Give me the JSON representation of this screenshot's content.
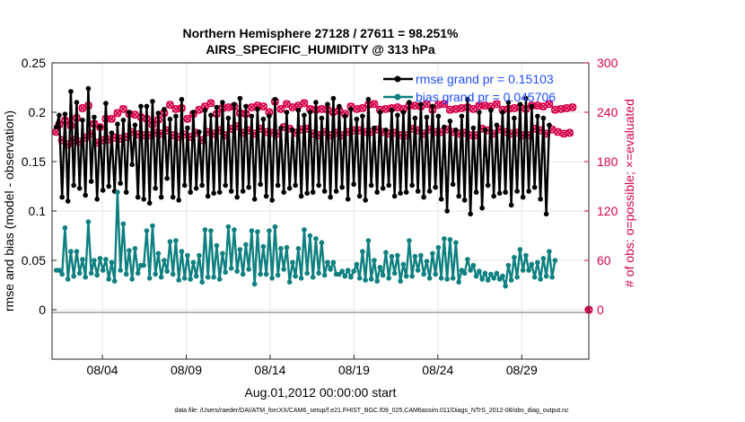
{
  "chart_data": {
    "type": "line",
    "title": "Northern Hemisphere 27128 / 27611 = 98.251%",
    "subtitle": "AIRS_SPECIFIC_HUMIDITY @ 313 hPa",
    "xlabel": "Aug.01,2012 00:00:00 start",
    "ylabel_left": "rmse and bias (model - observation)",
    "ylabel_right": "# of obs: o=possible; ×=evaluated",
    "ylim_left": [
      -0.05,
      0.25
    ],
    "ylim_right": [
      -60,
      300
    ],
    "x_ticks": [
      "08/04",
      "08/09",
      "08/14",
      "08/19",
      "08/24",
      "08/29"
    ],
    "y_ticks_left": [
      "0",
      "0.05",
      "0.1",
      "0.15",
      "0.2",
      "0.25"
    ],
    "y_ticks_right": [
      "0",
      "60",
      "120",
      "180",
      "240",
      "300"
    ],
    "footer": "data file: /Users/raeder/DAI/ATM_forcXX/CAM6_setup/f.e21.FHIST_BGC.f09_025.CAM6assim.011/Diags_NTrS_2012-08/obs_diag_output.nc",
    "colors": {
      "rmse": "#000000",
      "bias": "#0f8080",
      "obs": "#d6004b",
      "zero_line": "#b3b3b3",
      "legend_text": "#1f4dff"
    },
    "series": [
      {
        "name": "rmse grand pr = 0.15103",
        "axis": "left",
        "values": [
          0.185,
          0.197,
          0.114,
          0.198,
          0.11,
          0.221,
          0.126,
          0.21,
          0.123,
          0.192,
          0.116,
          0.224,
          0.13,
          0.195,
          0.112,
          0.185,
          0.121,
          0.209,
          0.125,
          0.179,
          0.12,
          0.188,
          0.128,
          0.192,
          0.119,
          0.2,
          0.147,
          0.187,
          0.114,
          0.206,
          0.112,
          0.206,
          0.108,
          0.211,
          0.123,
          0.199,
          0.114,
          0.203,
          0.133,
          0.193,
          0.114,
          0.196,
          0.111,
          0.213,
          0.126,
          0.184,
          0.119,
          0.2,
          0.123,
          0.18,
          0.126,
          0.202,
          0.115,
          0.197,
          0.118,
          0.205,
          0.119,
          0.21,
          0.126,
          0.194,
          0.12,
          0.208,
          0.114,
          0.214,
          0.12,
          0.206,
          0.124,
          0.196,
          0.112,
          0.203,
          0.127,
          0.193,
          0.115,
          0.196,
          0.111,
          0.213,
          0.126,
          0.184,
          0.119,
          0.2,
          0.123,
          0.182,
          0.126,
          0.202,
          0.115,
          0.197,
          0.118,
          0.2,
          0.119,
          0.21,
          0.126,
          0.194,
          0.12,
          0.208,
          0.114,
          0.214,
          0.12,
          0.206,
          0.124,
          0.196,
          0.112,
          0.203,
          0.127,
          0.193,
          0.115,
          0.196,
          0.111,
          0.213,
          0.126,
          0.184,
          0.119,
          0.2,
          0.123,
          0.182,
          0.126,
          0.202,
          0.115,
          0.197,
          0.118,
          0.2,
          0.119,
          0.21,
          0.126,
          0.194,
          0.12,
          0.208,
          0.114,
          0.195,
          0.12,
          0.206,
          0.124,
          0.196,
          0.112,
          0.185,
          0.1,
          0.191,
          0.127,
          0.182,
          0.115,
          0.196,
          0.111,
          0.213,
          0.097,
          0.184,
          0.119,
          0.2,
          0.103,
          0.182,
          0.126,
          0.202,
          0.115,
          0.187,
          0.118,
          0.2,
          0.119,
          0.21,
          0.106,
          0.194,
          0.12,
          0.208,
          0.114,
          0.214,
          0.12,
          0.206,
          0.124,
          0.196,
          0.112,
          0.194,
          0.097,
          0.187
        ]
      },
      {
        "name": "bias grand pr = 0.045706",
        "axis": "left",
        "values": [
          0.04,
          0.04,
          0.036,
          0.083,
          0.031,
          0.059,
          0.034,
          0.059,
          0.037,
          0.051,
          0.033,
          0.089,
          0.037,
          0.05,
          0.035,
          0.052,
          0.04,
          0.051,
          0.031,
          0.048,
          0.029,
          0.119,
          0.04,
          0.087,
          0.036,
          0.06,
          0.031,
          0.062,
          0.037,
          0.045,
          0.045,
          0.08,
          0.032,
          0.085,
          0.036,
          0.057,
          0.033,
          0.05,
          0.039,
          0.069,
          0.036,
          0.07,
          0.03,
          0.059,
          0.032,
          0.055,
          0.031,
          0.048,
          0.034,
          0.055,
          0.028,
          0.081,
          0.033,
          0.08,
          0.033,
          0.065,
          0.031,
          0.057,
          0.038,
          0.084,
          0.042,
          0.081,
          0.039,
          0.061,
          0.036,
          0.066,
          0.041,
          0.08,
          0.026,
          0.079,
          0.036,
          0.064,
          0.036,
          0.08,
          0.032,
          0.084,
          0.035,
          0.062,
          0.041,
          0.063,
          0.028,
          0.048,
          0.034,
          0.062,
          0.032,
          0.081,
          0.037,
          0.075,
          0.033,
          0.072,
          0.037,
          0.068,
          0.035,
          0.048,
          0.041,
          0.048,
          0.036,
          0.036,
          0.039,
          0.034,
          0.04,
          0.033,
          0.039,
          0.046,
          0.032,
          0.059,
          0.03,
          0.07,
          0.031,
          0.05,
          0.029,
          0.043,
          0.035,
          0.058,
          0.032,
          0.054,
          0.037,
          0.055,
          0.029,
          0.046,
          0.034,
          0.07,
          0.034,
          0.054,
          0.04,
          0.055,
          0.036,
          0.049,
          0.032,
          0.057,
          0.036,
          0.063,
          0.032,
          0.072,
          0.031,
          0.071,
          0.032,
          0.068,
          0.028,
          0.04,
          0.037,
          0.051,
          0.04,
          0.045,
          0.034,
          0.039,
          0.031,
          0.037,
          0.03,
          0.036,
          0.032,
          0.037,
          0.031,
          0.034,
          0.024,
          0.045,
          0.03,
          0.053,
          0.033,
          0.061,
          0.04,
          0.055,
          0.04,
          0.046,
          0.033,
          0.048,
          0.031,
          0.052,
          0.034,
          0.059,
          0.033,
          0.05
        ]
      },
      {
        "name": "obs possible",
        "axis": "right",
        "values": [
          216,
          225,
          206,
          230,
          201,
          224,
          206,
          233,
          204,
          245,
          209,
          248,
          214,
          226,
          203,
          222,
          206,
          232,
          207,
          232,
          209,
          239,
          208,
          244,
          210,
          238,
          216,
          237,
          213,
          234,
          212,
          232,
          212,
          225,
          215,
          231,
          214,
          239,
          218,
          249,
          212,
          244,
          210,
          245,
          213,
          232,
          210,
          238,
          215,
          243,
          206,
          247,
          216,
          251,
          214,
          238,
          218,
          245,
          212,
          246,
          220,
          247,
          223,
          239,
          215,
          238,
          218,
          246,
          214,
          248,
          220,
          247,
          216,
          240,
          215,
          253,
          214,
          244,
          222,
          250,
          220,
          246,
          215,
          248,
          219,
          251,
          220,
          244,
          214,
          243,
          212,
          244,
          216,
          243,
          212,
          240,
          215,
          242,
          212,
          238,
          216,
          247,
          218,
          244,
          218,
          245,
          216,
          249,
          216,
          250,
          219,
          243,
          216,
          244,
          214,
          245,
          215,
          246,
          212,
          244,
          212,
          248,
          220,
          248,
          218,
          247,
          214,
          250,
          219,
          243,
          216,
          249,
          216,
          250,
          219,
          243,
          216,
          244,
          214,
          245,
          215,
          246,
          212,
          244,
          212,
          248,
          220,
          248,
          218,
          247,
          214,
          250,
          219,
          243,
          216,
          244,
          214,
          245,
          215,
          246,
          212,
          244,
          212,
          248,
          220,
          248,
          218,
          247,
          214,
          250,
          219,
          243,
          216,
          244,
          214,
          245,
          215,
          246
        ]
      },
      {
        "name": "obs evaluated",
        "axis": "right",
        "values": [
          216,
          225,
          206,
          230,
          201,
          224,
          206,
          233,
          204,
          245,
          209,
          248,
          214,
          226,
          203,
          222,
          206,
          232,
          207,
          232,
          209,
          239,
          208,
          244,
          210,
          238,
          216,
          237,
          213,
          234,
          212,
          232,
          212,
          225,
          215,
          231,
          214,
          239,
          218,
          249,
          212,
          244,
          210,
          245,
          213,
          232,
          210,
          238,
          215,
          243,
          206,
          247,
          216,
          251,
          214,
          238,
          218,
          245,
          212,
          246,
          220,
          247,
          223,
          239,
          215,
          238,
          218,
          246,
          214,
          248,
          220,
          247,
          216,
          240,
          215,
          253,
          214,
          244,
          222,
          250,
          220,
          246,
          215,
          248,
          219,
          251,
          220,
          244,
          214,
          243,
          212,
          244,
          216,
          243,
          212,
          240,
          215,
          242,
          212,
          238,
          216,
          247,
          218,
          244,
          218,
          245,
          216,
          249,
          216,
          250,
          219,
          243,
          216,
          244,
          214,
          245,
          215,
          246,
          212,
          244,
          212,
          248,
          220,
          248,
          218,
          247,
          214,
          250,
          219,
          243,
          216,
          249,
          216,
          250,
          219,
          243,
          216,
          244,
          214,
          245,
          215,
          246,
          212,
          244,
          212,
          248,
          220,
          248,
          218,
          247,
          214,
          250,
          219,
          243,
          216,
          244,
          214,
          245,
          215,
          246,
          212,
          244,
          212,
          248,
          220,
          248,
          218,
          247,
          214,
          250,
          219,
          243,
          216,
          244,
          214,
          245,
          215,
          246
        ]
      }
    ],
    "zero_obs_marker": {
      "x_day": 32.0,
      "value": 0
    }
  }
}
